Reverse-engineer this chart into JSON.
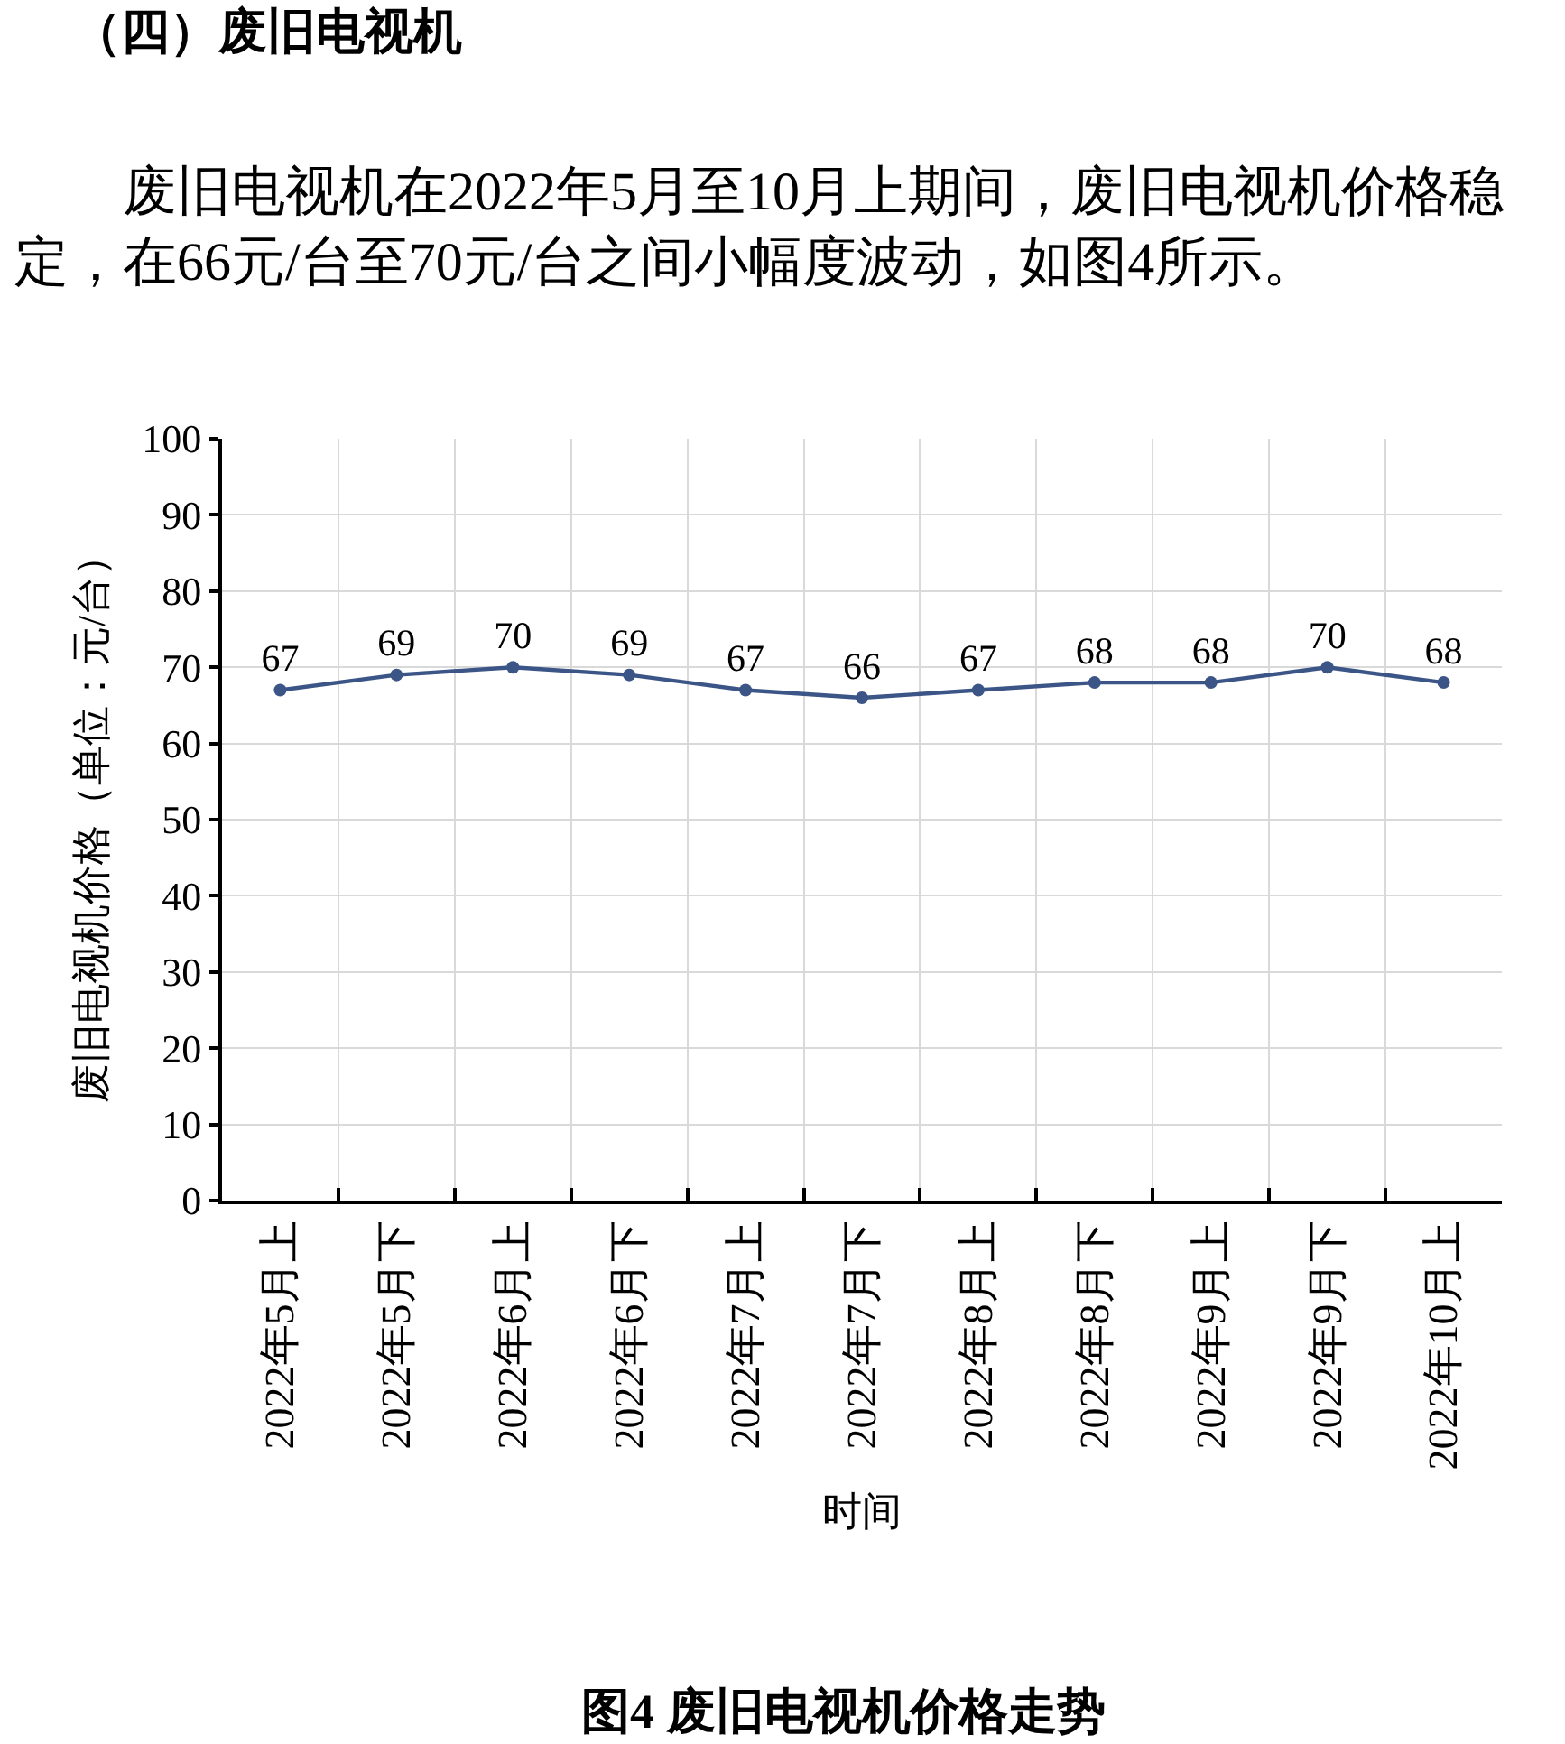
{
  "chart_data": {
    "type": "line",
    "title": "（四）废旧电视机",
    "subtitle": "废旧电视机在2022年5月至10月上期间，废旧电视机价格稳定，在66元/台至70元/台之间小幅度波动，如图4所示。",
    "xlabel": "时间",
    "ylabel": "废旧电视机价格（单位：元/台）",
    "annotations": [
      "图4 废旧电视机价格走势"
    ],
    "categories": [
      "2022年5月上",
      "2022年5月下",
      "2022年6月上",
      "2022年6月下",
      "2022年7月上",
      "2022年7月下",
      "2022年8月上",
      "2022年8月下",
      "2022年9月上",
      "2022年9月下",
      "2022年10月上"
    ],
    "series": [
      {
        "color": "#3b5587",
        "values": [
          67,
          69,
          70,
          69,
          67,
          66,
          67,
          68,
          68,
          70,
          68
        ]
      }
    ],
    "ylim": [
      0,
      100
    ],
    "yticks": [
      0,
      10,
      20,
      30,
      40,
      50,
      60,
      70,
      80,
      90,
      100
    ],
    "grid": true,
    "marker": "circle",
    "line_style": "solid",
    "data_labels": true
  }
}
